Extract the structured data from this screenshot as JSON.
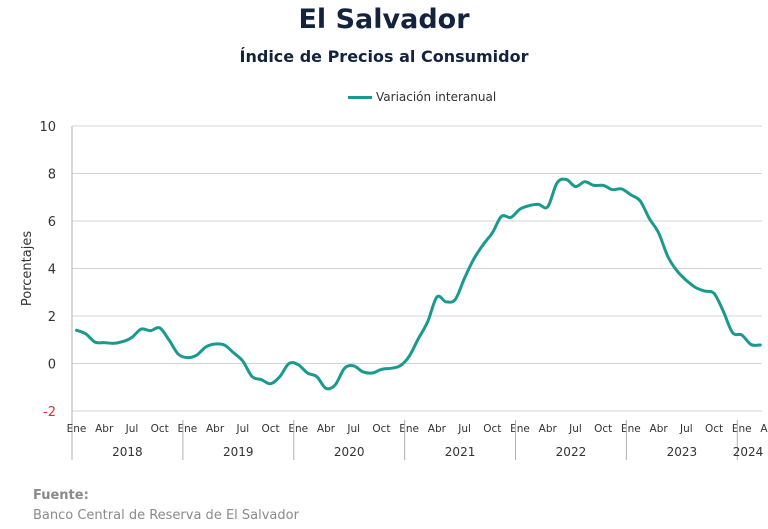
{
  "chart_data": {
    "type": "line",
    "title": "El Salvador",
    "subtitle": "Índice de Precios al Consumidor",
    "ylabel": "Porcentajes",
    "xlabel": "",
    "ylim": [
      -2,
      10
    ],
    "yticks": [
      -2,
      0,
      2,
      4,
      6,
      8,
      10
    ],
    "grid": true,
    "legend_position": "top-center",
    "month_tick_labels": [
      "Ene",
      "Abr",
      "Jul",
      "Oct"
    ],
    "years": [
      "2018",
      "2019",
      "2020",
      "2021",
      "2022",
      "2023",
      "2024"
    ],
    "series": [
      {
        "name": "Variación interanual",
        "color": "#1a9a8f",
        "x": [
          "2018-01",
          "2018-02",
          "2018-03",
          "2018-04",
          "2018-05",
          "2018-06",
          "2018-07",
          "2018-08",
          "2018-09",
          "2018-10",
          "2018-11",
          "2018-12",
          "2019-01",
          "2019-02",
          "2019-03",
          "2019-04",
          "2019-05",
          "2019-06",
          "2019-07",
          "2019-08",
          "2019-09",
          "2019-10",
          "2019-11",
          "2019-12",
          "2020-01",
          "2020-02",
          "2020-03",
          "2020-04",
          "2020-05",
          "2020-06",
          "2020-07",
          "2020-08",
          "2020-09",
          "2020-10",
          "2020-11",
          "2020-12",
          "2021-01",
          "2021-02",
          "2021-03",
          "2021-04",
          "2021-05",
          "2021-06",
          "2021-07",
          "2021-08",
          "2021-09",
          "2021-10",
          "2021-11",
          "2021-12",
          "2022-01",
          "2022-02",
          "2022-03",
          "2022-04",
          "2022-05",
          "2022-06",
          "2022-07",
          "2022-08",
          "2022-09",
          "2022-10",
          "2022-11",
          "2022-12",
          "2023-01",
          "2023-02",
          "2023-03",
          "2023-04",
          "2023-05",
          "2023-06",
          "2023-07",
          "2023-08",
          "2023-09",
          "2023-10",
          "2023-11",
          "2023-12",
          "2024-01",
          "2024-02",
          "2024-03"
        ],
        "values": [
          1.4,
          1.25,
          0.9,
          0.88,
          0.85,
          0.92,
          1.1,
          1.45,
          1.38,
          1.5,
          1.0,
          0.4,
          0.25,
          0.35,
          0.7,
          0.82,
          0.78,
          0.45,
          0.1,
          -0.55,
          -0.68,
          -0.85,
          -0.55,
          0.0,
          -0.05,
          -0.4,
          -0.55,
          -1.05,
          -0.9,
          -0.2,
          -0.1,
          -0.35,
          -0.4,
          -0.25,
          -0.2,
          -0.1,
          0.3,
          1.05,
          1.75,
          2.8,
          2.6,
          2.7,
          3.6,
          4.4,
          5.0,
          5.5,
          6.2,
          6.15,
          6.5,
          6.65,
          6.7,
          6.6,
          7.6,
          7.75,
          7.45,
          7.65,
          7.5,
          7.5,
          7.32,
          7.35,
          7.1,
          6.85,
          6.1,
          5.5,
          4.5,
          3.9,
          3.5,
          3.2,
          3.05,
          2.95,
          2.2,
          1.3,
          1.2,
          0.8,
          0.78
        ]
      }
    ]
  },
  "source": {
    "label": "Fuente:",
    "value": "Banco Central de Reserva de El Salvador"
  }
}
